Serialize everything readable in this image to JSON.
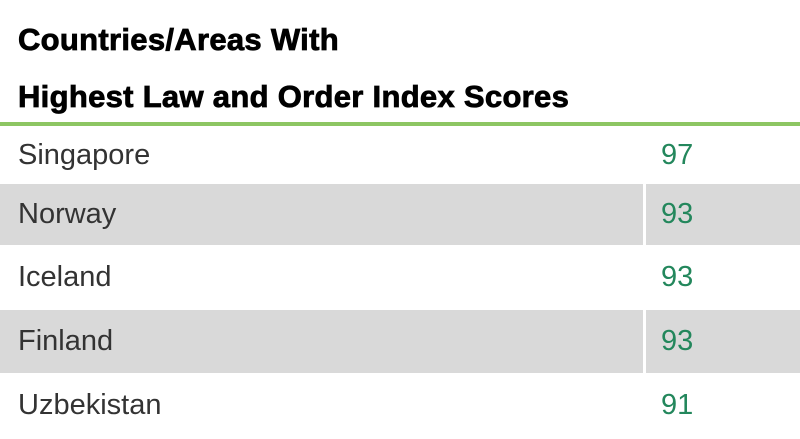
{
  "header": {
    "title": [
      "Countries/Areas With",
      "Highest Law and Order Index Scores"
    ]
  },
  "table": {
    "rows": [
      [
        "Singapore",
        97
      ],
      [
        "Norway",
        93
      ],
      [
        "Iceland",
        93
      ],
      [
        "Finland",
        93
      ],
      [
        "Uzbekistan",
        91
      ]
    ]
  }
}
